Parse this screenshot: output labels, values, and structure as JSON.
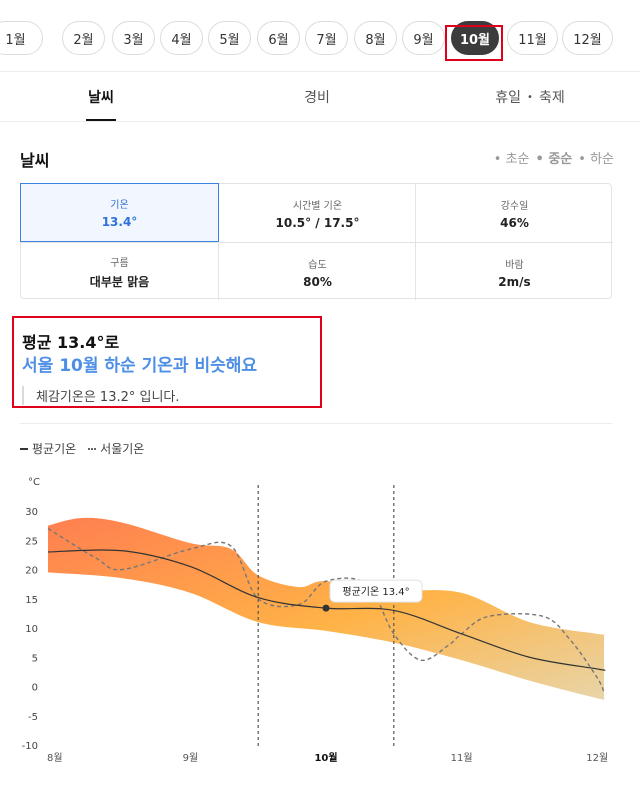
{
  "months": [
    "1월",
    "2월",
    "3월",
    "4월",
    "5월",
    "6월",
    "7월",
    "8월",
    "9월",
    "10월",
    "11월",
    "12월"
  ],
  "selected_month": "10월",
  "tabs": [
    "날씨",
    "경비",
    "휴일",
    "축제"
  ],
  "tab_separator": "•",
  "section_title": "날씨",
  "periods": [
    "초순",
    "중순",
    "하순"
  ],
  "selected_period": "중순",
  "period_bullet": "•",
  "stats": [
    {
      "label": "기온",
      "value": "13.4°"
    },
    {
      "label": "시간별 기온",
      "value": "10.5° / 17.5°"
    },
    {
      "label": "강수일",
      "value": "46%"
    },
    {
      "label": "구름",
      "value": "대부분 맑음"
    },
    {
      "label": "습도",
      "value": "80%"
    },
    {
      "label": "바람",
      "value": "2m/s"
    }
  ],
  "summary": {
    "line1": "평균 13.4°로",
    "line2": "서울 10월 하순 기온과 비슷해요",
    "line3": "체감기온은 13.2° 입니다."
  },
  "colors": {
    "accent": "#4e8fe6",
    "active_pill": "#3c3c3c",
    "highlight": "#e0001b",
    "band_start": "#ff7f50",
    "band_mid": "#ffb347",
    "band_end": "#e8d5a8"
  },
  "chart_data": {
    "type": "area",
    "legend": [
      "평균기온",
      "서울기온"
    ],
    "legend_position": "top-left",
    "y_unit": "°C",
    "ylim": [
      -10,
      30
    ],
    "yticks": [
      30,
      25,
      20,
      15,
      10,
      5,
      0,
      -5,
      -10
    ],
    "x_labels": [
      {
        "label": "8월",
        "x": 8.0,
        "bold": false
      },
      {
        "label": "9월",
        "x": 9.0,
        "bold": false
      },
      {
        "label": "10월",
        "x": 10.0,
        "bold": true
      },
      {
        "label": "11월",
        "x": 11.0,
        "bold": false
      },
      {
        "label": "12월",
        "x": 12.0,
        "bold": false
      }
    ],
    "xlim": [
      7.95,
      12.05
    ],
    "highlight_range": [
      9.5,
      10.5
    ],
    "series": [
      {
        "name": "평균기온",
        "style": "solid",
        "x": [
          7.95,
          8.5,
          9.0,
          9.5,
          10.0,
          10.5,
          11.0,
          11.5,
          12.0,
          12.05
        ],
        "y": [
          23,
          23.2,
          20.5,
          15.2,
          13.4,
          13,
          9,
          5,
          3,
          2.8
        ]
      },
      {
        "name": "서울기온",
        "style": "dashed",
        "x": [
          7.95,
          8.3,
          8.5,
          9.0,
          9.3,
          9.5,
          9.8,
          10.0,
          10.3,
          10.5,
          10.7,
          10.9,
          11.0,
          11.2,
          11.6,
          11.8,
          12.0,
          12.05
        ],
        "y": [
          27,
          22,
          20,
          23.5,
          24,
          15,
          14,
          18,
          17.5,
          9,
          4.5,
          7,
          9,
          12,
          12,
          8,
          1.5,
          -1
        ]
      },
      {
        "name": "band_upper",
        "x": [
          7.95,
          8.2,
          8.5,
          9.0,
          9.3,
          9.5,
          9.8,
          10.0,
          10.5,
          11.0,
          11.5,
          12.0,
          12.05
        ],
        "y": [
          27.5,
          28.8,
          28,
          24.5,
          23.5,
          19,
          17,
          18,
          16.5,
          16,
          11,
          9,
          9
        ]
      },
      {
        "name": "band_lower",
        "x": [
          7.95,
          8.5,
          9.0,
          9.5,
          10.0,
          10.5,
          11.0,
          11.5,
          12.0,
          12.05
        ],
        "y": [
          19.5,
          18.5,
          16,
          11,
          9.5,
          7.5,
          4.5,
          1,
          -2,
          -2
        ]
      }
    ],
    "marker": {
      "x": 10.0,
      "y": 13.4,
      "label": "평균기온 13.4°"
    }
  }
}
